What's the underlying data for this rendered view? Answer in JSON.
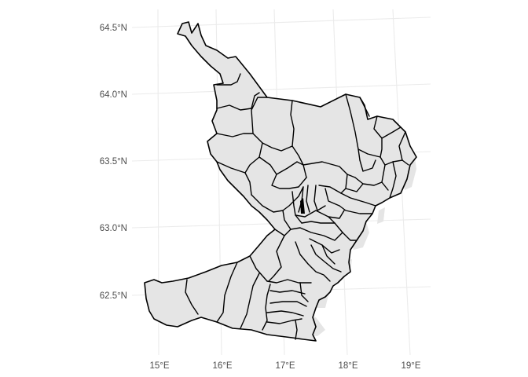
{
  "map": {
    "type": "choropleth-outline",
    "fill_color": "#e5e5e5",
    "border_color": "#000000",
    "grid_color": "#ebebeb",
    "y_axis": {
      "ticks": [
        {
          "lat": 64.5,
          "label": "64.5°N"
        },
        {
          "lat": 64.0,
          "label": "64.0°N"
        },
        {
          "lat": 63.5,
          "label": "63.5°N"
        },
        {
          "lat": 63.0,
          "label": "63.0°N"
        },
        {
          "lat": 62.5,
          "label": "62.5°N"
        }
      ]
    },
    "x_axis": {
      "ticks": [
        {
          "lon": 15,
          "label": "15°E"
        },
        {
          "lon": 16,
          "label": "16°E"
        },
        {
          "lon": 17,
          "label": "17°E"
        },
        {
          "lon": 18,
          "label": "18°E"
        },
        {
          "lon": 19,
          "label": "19°E"
        }
      ]
    }
  }
}
